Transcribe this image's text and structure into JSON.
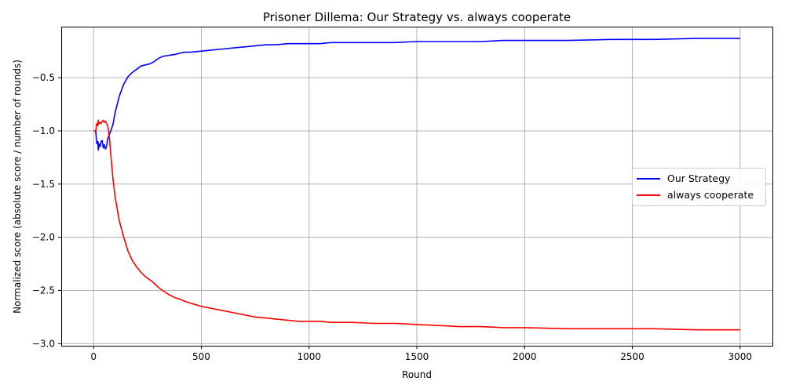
{
  "chart_data": {
    "type": "line",
    "title": "Prisoner Dillema: Our Strategy vs. always cooperate",
    "xlabel": "Round",
    "ylabel": "Normalized score (absolute score / number of rounds)",
    "xlim": [
      -150,
      3150
    ],
    "ylim": [
      -3.02,
      -0.02
    ],
    "xticks": [
      0,
      500,
      1000,
      1500,
      2000,
      2500,
      3000
    ],
    "xtick_labels": [
      "0",
      "500",
      "1000",
      "1500",
      "2000",
      "2500",
      "3000"
    ],
    "yticks": [
      -3.0,
      -2.5,
      -2.0,
      -1.5,
      -1.0,
      -0.5
    ],
    "ytick_labels": [
      "−3.0",
      "−2.5",
      "−2.0",
      "−1.5",
      "−1.0",
      "−0.5"
    ],
    "grid": true,
    "legend_position": "center-right",
    "series": [
      {
        "name": "Our Strategy",
        "color": "#0000ff",
        "x": [
          1,
          10,
          15,
          20,
          22,
          25,
          30,
          35,
          40,
          45,
          50,
          55,
          60,
          65,
          70,
          80,
          90,
          100,
          120,
          140,
          160,
          180,
          200,
          220,
          240,
          260,
          280,
          300,
          320,
          350,
          380,
          400,
          420,
          450,
          500,
          550,
          600,
          650,
          700,
          750,
          800,
          850,
          900,
          950,
          1000,
          1050,
          1100,
          1200,
          1300,
          1400,
          1500,
          1600,
          1700,
          1800,
          1900,
          2000,
          2200,
          2400,
          2600,
          2800,
          3000
        ],
        "y": [
          -1.0,
          -1.0,
          -1.12,
          -1.1,
          -1.18,
          -1.12,
          -1.15,
          -1.1,
          -1.09,
          -1.16,
          -1.13,
          -1.17,
          -1.15,
          -1.08,
          -1.05,
          -1.0,
          -0.94,
          -0.83,
          -0.67,
          -0.56,
          -0.49,
          -0.45,
          -0.42,
          -0.39,
          -0.38,
          -0.37,
          -0.35,
          -0.32,
          -0.3,
          -0.29,
          -0.28,
          -0.27,
          -0.26,
          -0.26,
          -0.25,
          -0.24,
          -0.23,
          -0.22,
          -0.21,
          -0.2,
          -0.19,
          -0.19,
          -0.18,
          -0.18,
          -0.18,
          -0.18,
          -0.17,
          -0.17,
          -0.17,
          -0.17,
          -0.16,
          -0.16,
          -0.16,
          -0.16,
          -0.15,
          -0.15,
          -0.15,
          -0.14,
          -0.14,
          -0.13,
          -0.13
        ]
      },
      {
        "name": "always cooperate",
        "color": "#ff0000",
        "x": [
          1,
          10,
          15,
          20,
          22,
          25,
          30,
          35,
          40,
          45,
          50,
          55,
          60,
          65,
          70,
          75,
          80,
          90,
          100,
          120,
          140,
          160,
          180,
          200,
          220,
          240,
          260,
          280,
          300,
          320,
          350,
          380,
          400,
          420,
          450,
          500,
          550,
          600,
          650,
          700,
          750,
          800,
          850,
          900,
          950,
          1000,
          1050,
          1100,
          1200,
          1300,
          1400,
          1500,
          1600,
          1700,
          1800,
          1900,
          2000,
          2200,
          2400,
          2600,
          2800,
          3000
        ],
        "y": [
          -1.0,
          -1.0,
          -0.93,
          -0.95,
          -0.9,
          -0.93,
          -0.92,
          -0.93,
          -0.91,
          -0.9,
          -0.92,
          -0.91,
          -0.93,
          -0.95,
          -1.0,
          -1.1,
          -1.22,
          -1.45,
          -1.62,
          -1.85,
          -2.0,
          -2.13,
          -2.22,
          -2.28,
          -2.33,
          -2.37,
          -2.4,
          -2.43,
          -2.47,
          -2.5,
          -2.54,
          -2.57,
          -2.58,
          -2.6,
          -2.62,
          -2.65,
          -2.67,
          -2.69,
          -2.71,
          -2.73,
          -2.75,
          -2.76,
          -2.77,
          -2.78,
          -2.79,
          -2.79,
          -2.79,
          -2.8,
          -2.8,
          -2.81,
          -2.81,
          -2.82,
          -2.83,
          -2.84,
          -2.84,
          -2.85,
          -2.85,
          -2.86,
          -2.86,
          -2.86,
          -2.87,
          -2.87
        ]
      }
    ]
  }
}
